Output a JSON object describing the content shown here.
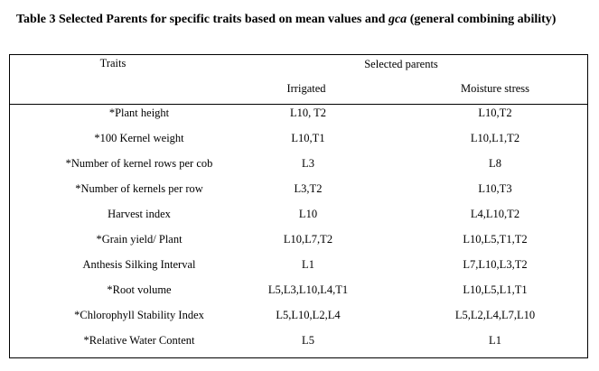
{
  "caption": {
    "prefix": "Table 3 Selected Parents for specific traits based on mean values and ",
    "italic": "gca",
    "suffix": " (general combining ability)"
  },
  "table": {
    "header": {
      "traits": "Traits",
      "selected_parents": "Selected parents",
      "irrigated": "Irrigated",
      "moisture_stress": "Moisture stress"
    },
    "rows": [
      {
        "trait": "*Plant height",
        "irrigated": "L10, T2",
        "moisture_stress": "L10,T2"
      },
      {
        "trait": "*100 Kernel weight",
        "irrigated": "L10,T1",
        "moisture_stress": "L10,L1,T2"
      },
      {
        "trait": "*Number of kernel rows per cob",
        "irrigated": "L3",
        "moisture_stress": "L8"
      },
      {
        "trait": "*Number of kernels per row",
        "irrigated": "L3,T2",
        "moisture_stress": "L10,T3"
      },
      {
        "trait": "Harvest index",
        "irrigated": "L10",
        "moisture_stress": "L4,L10,T2"
      },
      {
        "trait": "*Grain yield/ Plant",
        "irrigated": "L10,L7,T2",
        "moisture_stress": "L10,L5,T1,T2"
      },
      {
        "trait": "Anthesis Silking Interval",
        "irrigated": "L1",
        "moisture_stress": "L7,L10,L3,T2"
      },
      {
        "trait": "*Root volume",
        "irrigated": "L5,L3,L10,L4,T1",
        "moisture_stress": "L10,L5,L1,T1"
      },
      {
        "trait": "*Chlorophyll Stability Index",
        "irrigated": "L5,L10,L2,L4",
        "moisture_stress": "L5,L2,L4,L7,L10"
      },
      {
        "trait": "*Relative Water Content",
        "irrigated": "L5",
        "moisture_stress": "L1"
      }
    ]
  }
}
